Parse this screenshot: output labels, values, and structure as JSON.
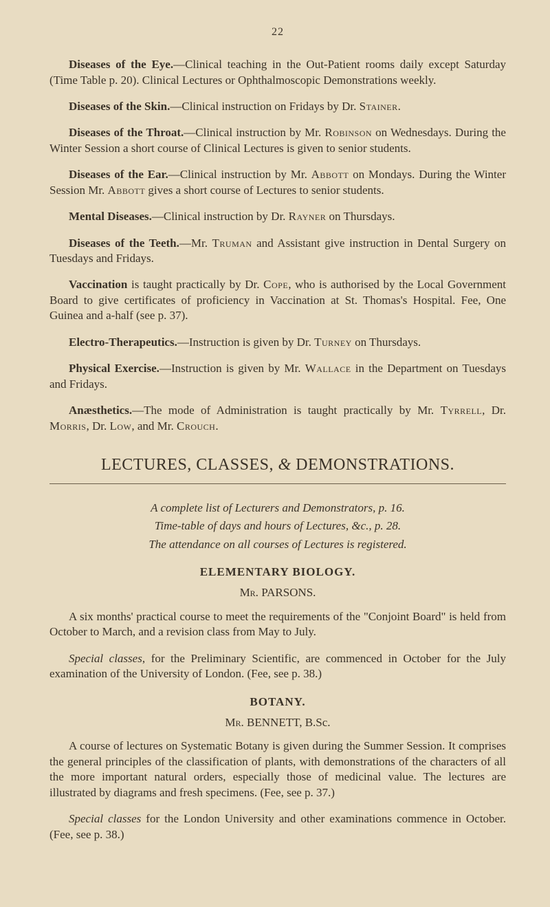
{
  "page_number": "22",
  "p1": {
    "lead": "Diseases of the Eye.",
    "rest": "—Clinical teaching in the Out-Patient rooms daily except Saturday (Time Table p. 20). Clinical Lectures or Ophthalmoscopic Demonstrations weekly."
  },
  "p2": {
    "lead": "Diseases of the Skin.",
    "rest": "—Clinical instruction on Fridays by Dr. ",
    "name": "Stainer",
    "tail": "."
  },
  "p3": {
    "lead": "Diseases of the Throat.",
    "rest": "—Clinical instruction by Mr. ",
    "name": "Robinson",
    "tail": " on Wednesdays. During the Winter Session a short course of Clinical Lectures is given to senior students."
  },
  "p4": {
    "lead": "Diseases of the Ear.",
    "rest": "—Clinical instruction by Mr. ",
    "name1": "Abbott",
    "mid": " on Mondays. During the Winter Session Mr. ",
    "name2": "Abbott",
    "tail": " gives a short course of Lectures to senior students."
  },
  "p5": {
    "lead": "Mental Diseases.",
    "rest": "—Clinical instruction by Dr. ",
    "name": "Rayner",
    "tail": " on Thursdays."
  },
  "p6": {
    "lead": "Diseases of the Teeth.",
    "rest": "—Mr. ",
    "name": "Truman",
    "tail": " and Assistant give instruction in Dental Surgery on Tuesdays and Fridays."
  },
  "p7": {
    "lead": "Vaccination",
    "rest": " is taught practically by Dr. ",
    "name": "Cope",
    "tail": ", who is authorised by the Local Government Board to give certificates of proficiency in Vaccination at St. Thomas's Hospital. Fee, One Guinea and a-half (see p. 37)."
  },
  "p8": {
    "lead": "Electro-Therapeutics.",
    "rest": "—Instruction is given by Dr. ",
    "name": "Turney",
    "tail": " on Thursdays."
  },
  "p9": {
    "lead": "Physical Exercise.",
    "rest": "—Instruction is given by Mr. ",
    "name": "Wallace",
    "tail": " in the Department on Tuesdays and Fridays."
  },
  "p10": {
    "lead": "Anæsthetics.",
    "rest": "—The mode of Administration is taught practically by Mr. ",
    "name1": "Tyrrell",
    "mid1": ", Dr. ",
    "name2": "Morris",
    "mid2": ", Dr. ",
    "name3": "Low",
    "mid3": ", and Mr. ",
    "name4": "Crouch",
    "tail": "."
  },
  "section_title_a": "LECTURES, CLASSES, ",
  "section_title_amp": "&",
  "section_title_b": " DEMONSTRATIONS.",
  "refs": {
    "l1": "A complete list of Lecturers and Demonstrators, p. 16.",
    "l2": "Time-table of days and hours of Lectures, &c., p. 28.",
    "l3": "The attendance on all courses of Lectures is registered."
  },
  "bio": {
    "heading": "ELEMENTARY BIOLOGY.",
    "presenter_prefix": "Mr.",
    "presenter_name": " PARSONS.",
    "p1": "A six months' practical course to meet the requirements of the \"Conjoint Board\" is held from October to March, and a revision class from May to July.",
    "p2a": "Special classes",
    "p2b": ", for the Preliminary Scientific, are commenced in October for the July examination of the University of London. (Fee, see p. 38.)"
  },
  "bot": {
    "heading": "BOTANY.",
    "presenter_prefix": "Mr.",
    "presenter_name": " BENNETT, B.Sc.",
    "p1": "A course of lectures on Systematic Botany is given during the Summer Session. It comprises the general principles of the classification of plants, with demonstrations of the characters of all the more important natural orders, especially those of medicinal value. The lectures are illustrated by diagrams and fresh specimens. (Fee, see p. 37.)",
    "p2a": "Special classes",
    "p2b": " for the London University and other examinations commence in October. (Fee, see p. 38.)"
  }
}
